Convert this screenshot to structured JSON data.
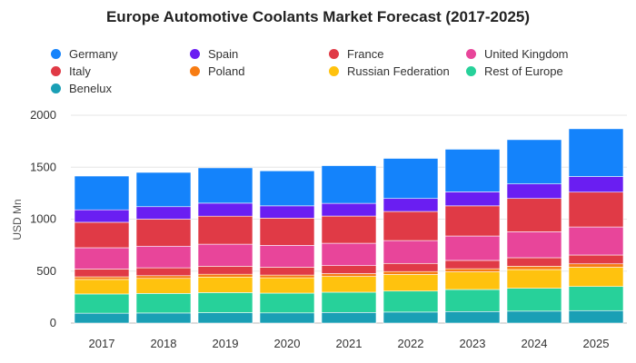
{
  "chart_data": {
    "type": "bar",
    "stacked": true,
    "title": "Europe Automotive Coolants Market Forecast (2017-2025)",
    "xlabel": "",
    "ylabel": "USD Mn",
    "ylim": [
      0,
      2000
    ],
    "yticks": [
      0,
      500,
      1000,
      1500,
      2000
    ],
    "grid": true,
    "legend_position": "top",
    "categories": [
      "2017",
      "2018",
      "2019",
      "2020",
      "2021",
      "2022",
      "2023",
      "2024",
      "2025"
    ],
    "legend_order": [
      "Germany",
      "Spain",
      "France",
      "United Kingdom",
      "Italy",
      "Poland",
      "Russian Federation",
      "Rest of Europe",
      "Benelux"
    ],
    "series": [
      {
        "name": "Benelux",
        "color": "#1a9fb5",
        "values": [
          95,
          97,
          100,
          98,
          102,
          106,
          111,
          115,
          120
        ]
      },
      {
        "name": "Rest of Europe",
        "color": "#27d19a",
        "values": [
          185,
          188,
          193,
          190,
          195,
          202,
          212,
          220,
          232
        ]
      },
      {
        "name": "Russian Federation",
        "color": "#ffc20e",
        "values": [
          140,
          145,
          150,
          148,
          152,
          160,
          170,
          180,
          185
        ]
      },
      {
        "name": "Poland",
        "color": "#f77c13",
        "values": [
          25,
          26,
          27,
          26,
          27,
          28,
          30,
          32,
          33
        ]
      },
      {
        "name": "Italy",
        "color": "#e03a46",
        "values": [
          75,
          76,
          77,
          76,
          77,
          78,
          80,
          82,
          85
        ]
      },
      {
        "name": "United Kingdom",
        "color": "#e8459a",
        "values": [
          205,
          208,
          212,
          210,
          215,
          220,
          235,
          250,
          270
        ]
      },
      {
        "name": "France",
        "color": "#e03a46",
        "values": [
          245,
          260,
          270,
          262,
          262,
          280,
          290,
          320,
          335
        ]
      },
      {
        "name": "Spain",
        "color": "#6a1ef2",
        "values": [
          120,
          120,
          125,
          118,
          122,
          125,
          135,
          140,
          150
        ]
      },
      {
        "name": "Germany",
        "color": "#1483fb",
        "values": [
          325,
          330,
          340,
          337,
          363,
          386,
          410,
          426,
          460
        ]
      }
    ]
  },
  "legend_colors": {
    "Germany": "#1483fb",
    "Spain": "#6a1ef2",
    "France": "#e03a46",
    "United Kingdom": "#e8459a",
    "Italy": "#e03a46",
    "Poland": "#f77c13",
    "Russian Federation": "#ffc20e",
    "Rest of Europe": "#27d19a",
    "Benelux": "#1a9fb5"
  }
}
